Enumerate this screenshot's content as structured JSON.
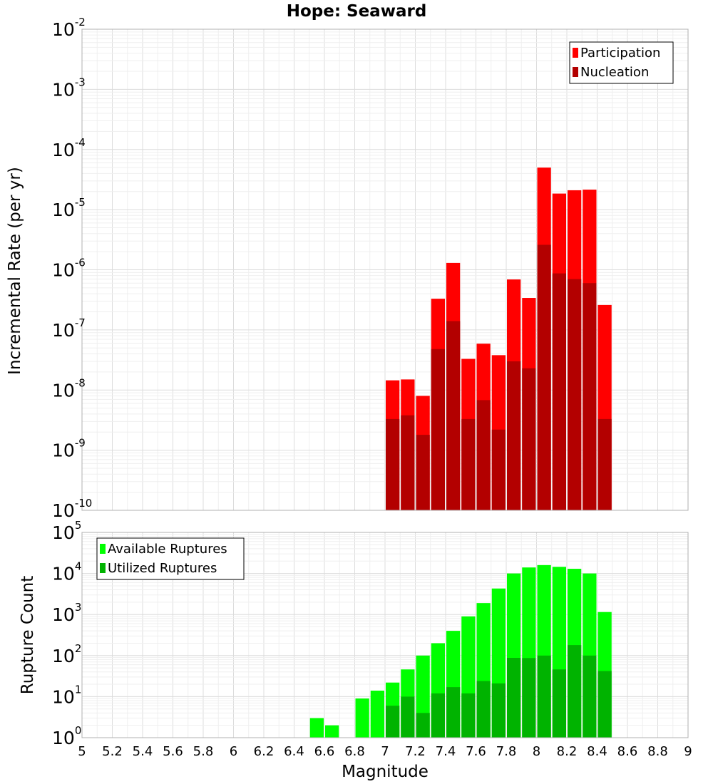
{
  "chart_data": [
    {
      "type": "bar",
      "title": "Hope: Seaward",
      "xlabel": "",
      "ylabel": "Incremental Rate (per yr)",
      "yscale": "log",
      "ylim_exponents": [
        -10,
        -2
      ],
      "xlim": [
        5,
        9
      ],
      "grid": true,
      "legend_position": "top-right",
      "x": [
        7.0,
        7.1,
        7.2,
        7.3,
        7.4,
        7.5,
        7.6,
        7.7,
        7.8,
        7.9,
        8.0,
        8.1,
        8.2,
        8.3,
        8.4
      ],
      "series": [
        {
          "name": "Participation",
          "color": "#ff0000",
          "values": [
            1.45e-08,
            1.5e-08,
            8e-09,
            3.3e-07,
            1.3e-06,
            3.3e-08,
            5.9e-08,
            3.8e-08,
            6.9e-07,
            3.4e-07,
            5e-05,
            1.85e-05,
            2.1e-05,
            2.15e-05,
            2.6e-07
          ]
        },
        {
          "name": "Nucleation",
          "color": "#b30000",
          "values": [
            3.3e-09,
            3.8e-09,
            1.8e-09,
            4.8e-08,
            1.4e-07,
            3.3e-09,
            6.8e-09,
            2.2e-09,
            3e-08,
            2.3e-08,
            2.6e-06,
            8.7e-07,
            7e-07,
            6e-07,
            3.3e-09
          ]
        }
      ]
    },
    {
      "type": "bar",
      "title": "",
      "xlabel": "Magnitude",
      "ylabel": "Rupture Count",
      "yscale": "log",
      "ylim_exponents": [
        0,
        5
      ],
      "xlim": [
        5,
        9
      ],
      "grid": true,
      "legend_position": "top-left",
      "x_tick_labels": [
        "5",
        "5.2",
        "5.4",
        "5.6",
        "5.8",
        "6",
        "6.2",
        "6.4",
        "6.6",
        "6.8",
        "7",
        "7.2",
        "7.4",
        "7.6",
        "7.8",
        "8",
        "8.2",
        "8.4",
        "8.6",
        "8.8",
        "9"
      ],
      "x": [
        6.5,
        6.6,
        6.7,
        6.8,
        6.9,
        7.0,
        7.1,
        7.2,
        7.3,
        7.4,
        7.5,
        7.6,
        7.7,
        7.8,
        7.9,
        8.0,
        8.1,
        8.2,
        8.3,
        8.4
      ],
      "series": [
        {
          "name": "Available Ruptures",
          "color": "#00ff00",
          "values": [
            3,
            2,
            1,
            9,
            14,
            22,
            46,
            100,
            200,
            400,
            900,
            1900,
            4300,
            10000,
            14000,
            16000,
            14500,
            13000,
            10000,
            1150
          ]
        },
        {
          "name": "Utilized Ruptures",
          "color": "#00b300",
          "values": [
            0,
            0,
            0,
            0,
            0,
            6,
            10,
            4,
            12,
            17,
            12,
            24,
            21,
            88,
            87,
            100,
            46,
            180,
            100,
            42
          ]
        }
      ]
    }
  ]
}
